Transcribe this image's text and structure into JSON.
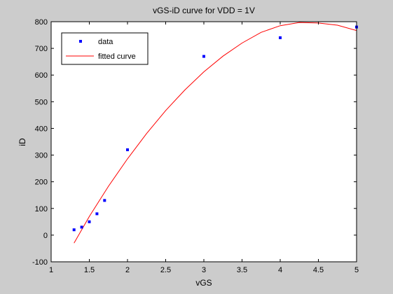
{
  "chart_data": {
    "type": "scatter",
    "title": "vGS-iD curve for VDD = 1V",
    "xlabel": "vGS",
    "ylabel": "iD",
    "xlim": [
      1,
      5
    ],
    "ylim": [
      -100,
      800
    ],
    "xticks": [
      1,
      1.5,
      2,
      2.5,
      3,
      3.5,
      4,
      4.5,
      5
    ],
    "xtick_labels": [
      "1",
      "1.5",
      "2",
      "2.5",
      "3",
      "3.5",
      "4",
      "4.5",
      "5"
    ],
    "yticks": [
      -100,
      0,
      100,
      200,
      300,
      400,
      500,
      600,
      700,
      800
    ],
    "ytick_labels": [
      "-100",
      "0",
      "100",
      "200",
      "300",
      "400",
      "500",
      "600",
      "700",
      "800"
    ],
    "grid": false,
    "legend_position": "top-left",
    "series": [
      {
        "name": "data",
        "kind": "points",
        "color": "#0000ff",
        "x": [
          1.3,
          1.4,
          1.5,
          1.6,
          1.7,
          2.0,
          3.0,
          4.0,
          5.0
        ],
        "y": [
          20,
          30,
          50,
          80,
          130,
          320,
          670,
          740,
          780
        ]
      },
      {
        "name": "fitted curve",
        "kind": "line",
        "color": "#ff0000",
        "x": [
          1.3,
          1.5,
          1.75,
          2.0,
          2.25,
          2.5,
          2.75,
          3.0,
          3.25,
          3.5,
          3.75,
          4.0,
          4.25,
          4.5,
          4.75,
          5.0
        ],
        "y": [
          -30,
          70,
          183,
          286,
          381,
          467,
          544,
          612,
          671,
          720,
          760,
          785,
          797,
          795,
          787,
          767
        ]
      }
    ]
  }
}
